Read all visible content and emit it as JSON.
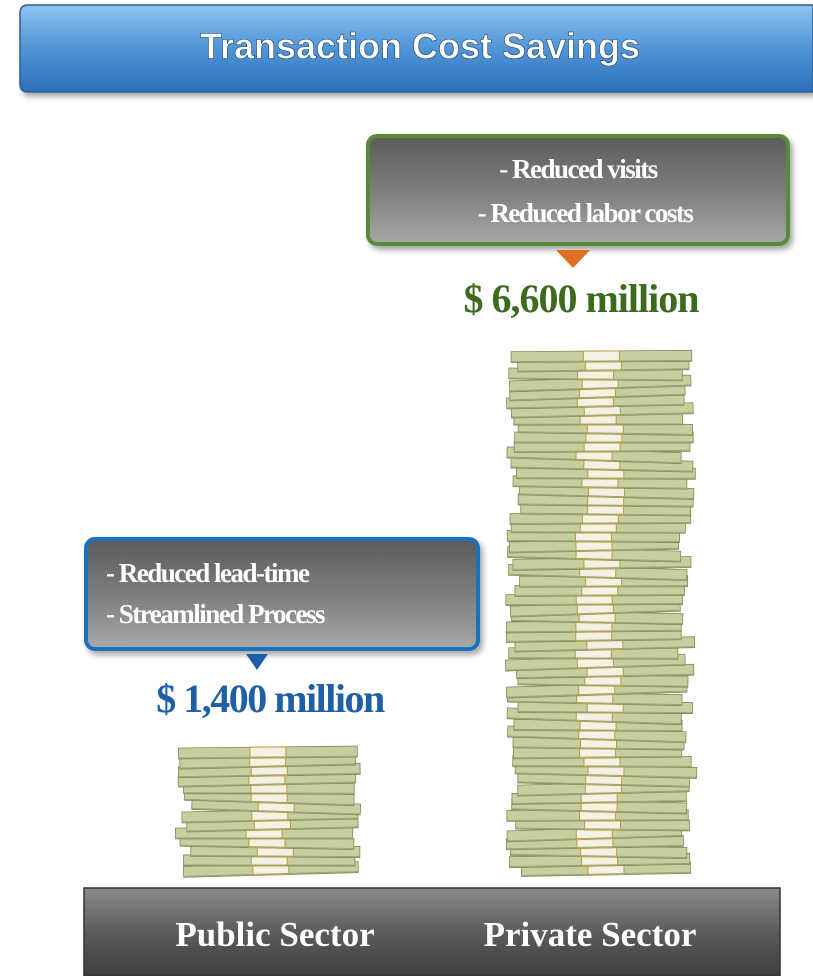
{
  "title": "Transaction Cost Savings",
  "columns": [
    {
      "label": "Public Sector",
      "amount": "$ 1,400 million",
      "notes": [
        "- Reduced lead-time",
        "- Streamlined Process"
      ]
    },
    {
      "label": "Private Sector",
      "amount": "$ 6,600 million",
      "notes": [
        "- Reduced visits",
        "- Reduced labor costs"
      ]
    }
  ]
}
